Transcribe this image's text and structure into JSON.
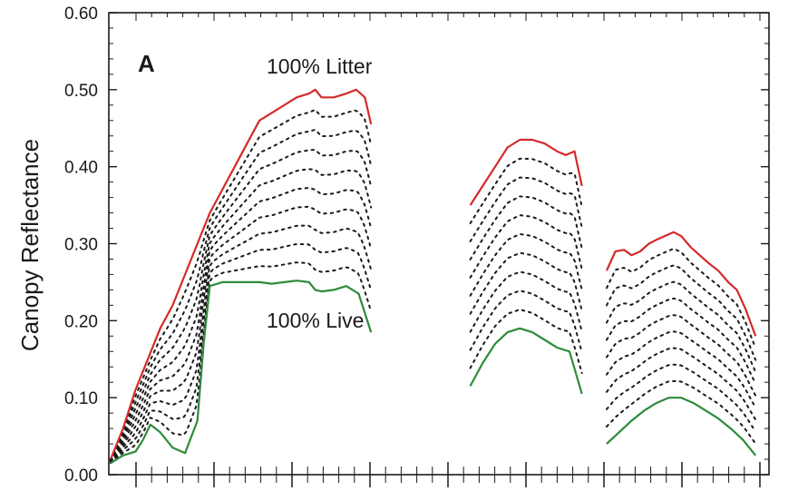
{
  "chart_data": {
    "type": "line",
    "title": "",
    "panel_label": "A",
    "xlabel": "",
    "ylabel": "Canopy Reflectance",
    "ylim": [
      0,
      0.6
    ],
    "yticks": [
      0.0,
      0.1,
      0.2,
      0.3,
      0.4,
      0.5,
      0.6
    ],
    "ytick_labels": [
      "0.00",
      "0.10",
      "0.20",
      "0.30",
      "0.40",
      "0.50",
      "0.60"
    ],
    "xlim": [
      0,
      43
    ],
    "x_tick_labels_visible": false,
    "grid": false,
    "annotations": [
      {
        "text": "100% Litter",
        "x": 16,
        "y": 0.52
      },
      {
        "text": "100% Live",
        "x": 15.5,
        "y": 0.19
      }
    ],
    "colors": {
      "litter": "#d42a2a",
      "live": "#2e8b3a",
      "mixtures": "#1a1a1a",
      "axis": "#1a1a1a"
    },
    "mixture_line_count": 9,
    "series": [
      {
        "name": "100% Litter",
        "segments": [
          {
            "x": [
              0,
              1,
              2,
              3,
              4,
              5,
              6,
              7,
              8,
              9,
              10,
              11,
              12,
              13,
              14,
              15,
              16,
              16.5,
              17,
              18,
              19,
              19.8,
              20.5,
              21
            ],
            "y": [
              0.02,
              0.06,
              0.11,
              0.15,
              0.19,
              0.22,
              0.26,
              0.3,
              0.34,
              0.37,
              0.4,
              0.43,
              0.46,
              0.47,
              0.48,
              0.49,
              0.495,
              0.5,
              0.49,
              0.49,
              0.495,
              0.5,
              0.49,
              0.455
            ]
          },
          {
            "x": [
              29,
              30,
              31,
              32,
              33,
              34,
              35,
              36,
              36.7,
              37.4,
              38
            ],
            "y": [
              0.35,
              0.375,
              0.4,
              0.425,
              0.435,
              0.435,
              0.43,
              0.42,
              0.415,
              0.42,
              0.375
            ]
          },
          {
            "x": [
              40,
              40.7,
              41.4,
              42,
              42.7,
              43.4,
              44,
              44.7,
              45.4,
              46,
              46.8,
              47.5,
              48.2,
              49,
              49.8,
              50.5,
              51.2,
              52
            ],
            "y": [
              0.265,
              0.29,
              0.292,
              0.285,
              0.29,
              0.3,
              0.305,
              0.31,
              0.315,
              0.31,
              0.295,
              0.285,
              0.275,
              0.265,
              0.25,
              0.24,
              0.215,
              0.18
            ]
          }
        ]
      },
      {
        "name": "100% Live",
        "segments": [
          {
            "x": [
              0,
              1,
              2,
              2.6,
              3.2,
              4,
              5,
              6,
              7,
              7.5,
              8,
              9,
              10,
              11,
              12,
              13,
              14,
              15,
              16,
              16.5,
              17,
              18,
              19,
              20,
              21
            ],
            "y": [
              0.015,
              0.025,
              0.03,
              0.045,
              0.065,
              0.055,
              0.035,
              0.028,
              0.07,
              0.17,
              0.245,
              0.25,
              0.25,
              0.25,
              0.25,
              0.248,
              0.25,
              0.252,
              0.25,
              0.24,
              0.238,
              0.24,
              0.245,
              0.235,
              0.185
            ]
          },
          {
            "x": [
              29,
              30,
              31,
              32,
              33,
              34,
              35,
              36,
              37,
              38
            ],
            "y": [
              0.115,
              0.145,
              0.17,
              0.185,
              0.19,
              0.185,
              0.175,
              0.165,
              0.16,
              0.105
            ]
          },
          {
            "x": [
              40,
              41,
              42,
              43,
              44,
              45,
              46,
              47,
              48,
              49,
              50,
              51,
              52
            ],
            "y": [
              0.04,
              0.055,
              0.07,
              0.083,
              0.093,
              0.1,
              0.1,
              0.093,
              0.083,
              0.073,
              0.06,
              0.045,
              0.025
            ]
          }
        ]
      }
    ]
  }
}
